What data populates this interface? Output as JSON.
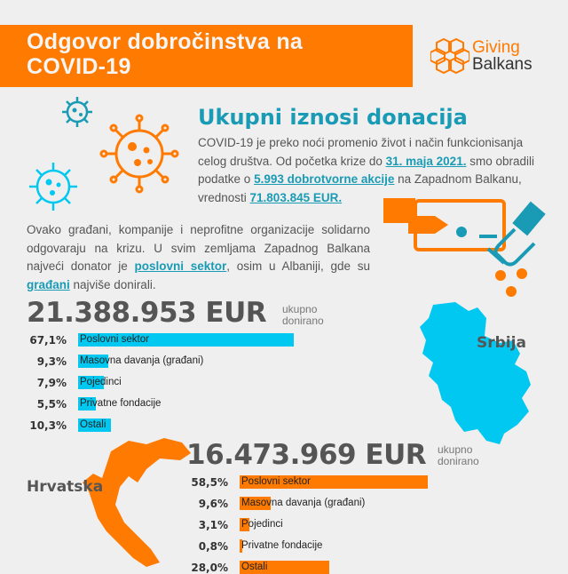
{
  "header": {
    "title_line1": "Odgovor dobročinstva na",
    "title_line2": "COVID-19"
  },
  "logo": {
    "line1": "Giving",
    "line2": "Balkans"
  },
  "section": {
    "title": "Ukupni iznosi donacija",
    "p1": {
      "t1": "COVID-19 je preko noći promenio život i način funkcionisanja celog društva. Od početka krize do ",
      "h1": "31. maja 2021.",
      "t2": " smo obradili podatke o ",
      "h2": "5.993 dobrotvorne akcije",
      "t3": " na Zapadnom Balkanu, vrednosti ",
      "h3": "71.803.845  EUR."
    },
    "p2": {
      "t1": "Ovako građani, kompanije i neprofitne organizacije solidarno odgovaraju na krizu. U svim zemljama Zapadnog Balkana najveći donator je ",
      "h1": "poslovni sektor",
      "t2": ", osim u Albaniji, gde su ",
      "h2": "građani",
      "t3": " najviše donirali."
    }
  },
  "colors": {
    "orange": "#ff7a00",
    "cyan": "#00c8f0",
    "teal": "#1a9bb5"
  },
  "icons": [
    "virus-icon",
    "donation-card-hand-icon",
    "coins-icon",
    "serbia-map",
    "croatia-map",
    "giving-balkans-logo-icon"
  ],
  "chart_data": [
    {
      "type": "bar",
      "country": "Srbija",
      "total": "21.388.953 EUR",
      "total_caption_1": "ukupno",
      "total_caption_2": "donirano",
      "color": "#00c8f0",
      "categories": [
        "Poslovni sektor",
        "Masovna davanja (građani)",
        "Pojedinci",
        "Privatne fondacije",
        "Ostali"
      ],
      "values": [
        67.1,
        9.3,
        7.9,
        5.5,
        10.3
      ],
      "value_labels": [
        "67,1%",
        "9,3%",
        "7,9%",
        "5,5%",
        "10,3%"
      ],
      "unit": "%"
    },
    {
      "type": "bar",
      "country": "Hrvatska",
      "total": "16.473.969 EUR",
      "total_caption_1": "ukupno",
      "total_caption_2": "donirano",
      "color": "#ff7a00",
      "categories": [
        "Poslovni sektor",
        "Masovna davanja (građani)",
        "Pojedinci",
        "Privatne fondacije",
        "Ostali"
      ],
      "values": [
        58.5,
        9.6,
        3.1,
        0.8,
        28.0
      ],
      "value_labels": [
        "58,5%",
        "9,6%",
        "3,1%",
        "0,8%",
        "28,0%"
      ],
      "unit": "%"
    }
  ]
}
